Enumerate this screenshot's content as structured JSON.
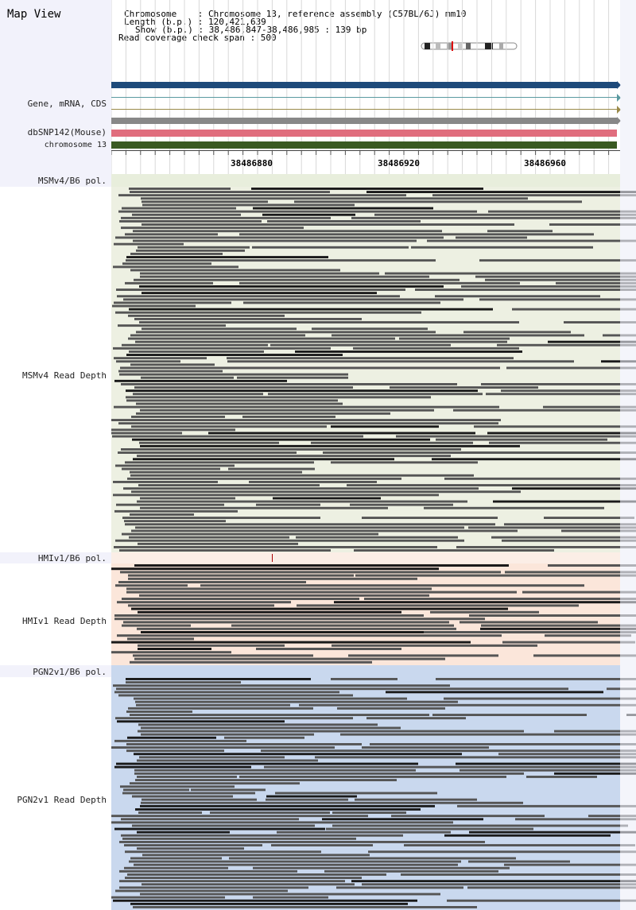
{
  "app_title": "Map View",
  "header": {
    "chromosome_line": "Chromosome    : Chromosome 13, reference assembly (C57BL/6J) mm10",
    "length_line": "Length (b.p.) : 120,421,639",
    "show_line": "Show (b.p.) : 38,486,847-38,486,985 : 139 bp",
    "coverage_line": "Read coverage check span : 500"
  },
  "tracks": {
    "gene_label": "Gene, mRNA, CDS",
    "snp_label": "dbSNP142(Mouse)",
    "chrom_label": "chromosome 13"
  },
  "ruler": {
    "ticks": [
      "38486880",
      "38486920",
      "38486960"
    ]
  },
  "panels": [
    {
      "pol_label": "MSMv4/B6 pol.",
      "depth_label": "MSMv4 Read Depth",
      "bg": "#edf0e2"
    },
    {
      "pol_label": "HMIv1/B6 pol.",
      "depth_label": "HMIv1 Read Depth",
      "bg": "#fbe6da"
    },
    {
      "pol_label": "PGN2v1/B6 pol.",
      "depth_label": "PGN2v1 Read Depth",
      "bg": "#c9d8ee"
    }
  ],
  "colors": {
    "gene_bar": "#1d4a7a",
    "snp_bar": "#e06d7d",
    "chrom_bar": "#3a5a22",
    "read": "#555555",
    "read_dark": "#1a1a1a"
  }
}
